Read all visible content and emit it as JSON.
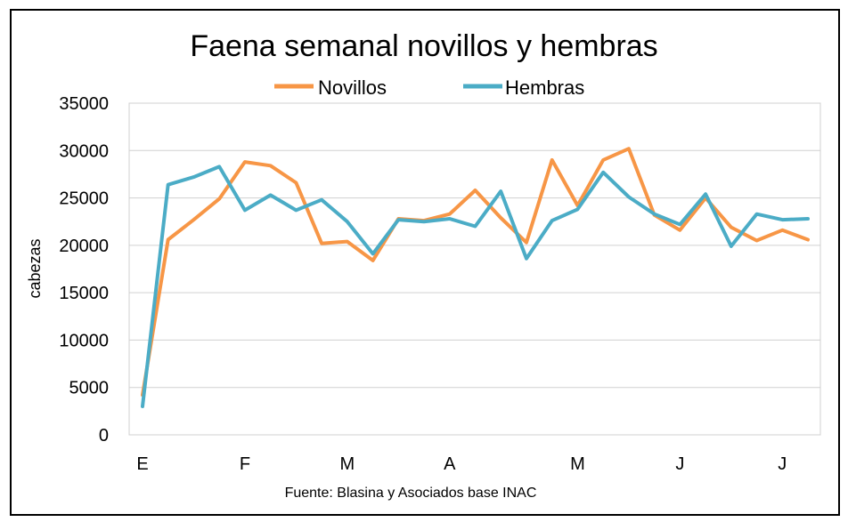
{
  "chart_data": {
    "type": "line",
    "title": "Faena semanal novillos y hembras",
    "ylabel": "cabezas",
    "xlabel": "",
    "source": "Fuente: Blasina y Asociados base INAC",
    "ylim": [
      0,
      35000
    ],
    "yticks": [
      "0",
      "5000",
      "10000",
      "15000",
      "20000",
      "25000",
      "30000",
      "35000"
    ],
    "x_tick_labels": [
      {
        "label": "E",
        "index": 0
      },
      {
        "label": "F",
        "index": 4
      },
      {
        "label": "M",
        "index": 8
      },
      {
        "label": "A",
        "index": 12
      },
      {
        "label": "M",
        "index": 17
      },
      {
        "label": "J",
        "index": 21
      },
      {
        "label": "J",
        "index": 25
      }
    ],
    "legend_position": "top",
    "grid": true,
    "series": [
      {
        "name": "Novillos",
        "color": "#F79646",
        "values": [
          4200,
          20600,
          22700,
          24900,
          28800,
          28400,
          26600,
          20200,
          20400,
          18400,
          22800,
          22600,
          23300,
          25800,
          22900,
          20300,
          29000,
          24200,
          29000,
          30200,
          23200,
          21600,
          25000,
          21900,
          20500,
          21600,
          20600
        ]
      },
      {
        "name": "Hembras",
        "color": "#4BACC6",
        "values": [
          3000,
          26400,
          27200,
          28300,
          23700,
          25300,
          23700,
          24800,
          22500,
          19100,
          22700,
          22500,
          22800,
          22000,
          25700,
          18600,
          22600,
          23800,
          27700,
          25100,
          23300,
          22200,
          25400,
          19900,
          23300,
          22700,
          22800
        ]
      }
    ]
  }
}
